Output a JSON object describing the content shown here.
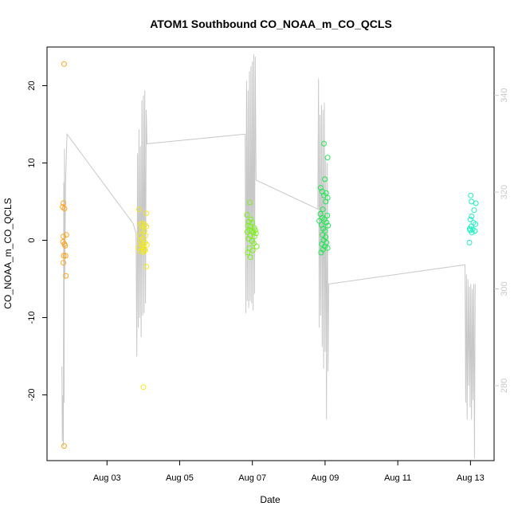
{
  "chart_data": {
    "type": "scatter",
    "title": "ATOM1 Southbound CO_NOAA_m_CO_QCLS",
    "xlabel": "Date",
    "ylabel": "CO_NOAA_m_CO_QCLS",
    "x_unit": "days since Aug 01 00:00",
    "xlim": [
      1.35,
      13.65
    ],
    "x_ticks": [
      3,
      5,
      7,
      9,
      11,
      13
    ],
    "x_tick_labels": [
      "Aug 03",
      "Aug 05",
      "Aug 07",
      "Aug 09",
      "Aug 11",
      "Aug 13"
    ],
    "ylim": [
      -28.5,
      25.0
    ],
    "y_ticks": [
      -20,
      -10,
      0,
      10,
      20
    ],
    "y_tick_labels": [
      "-20",
      "-10",
      "0",
      "10",
      "20"
    ],
    "y2lim": [
      264.5,
      350.0
    ],
    "y2_ticks": [
      280,
      300,
      320,
      340
    ],
    "y2_tick_labels": [
      "280",
      "300",
      "320",
      "340"
    ],
    "grid": false,
    "legend": "none",
    "colors": {
      "line": "#c8c8c8",
      "right_axis": "#c8c8c8",
      "axis": "#000000"
    },
    "series": [
      {
        "color": "#ffa31a",
        "points": [
          [
            1.82,
            22.8
          ],
          [
            1.8,
            4.8
          ],
          [
            1.78,
            4.3
          ],
          [
            1.83,
            4.1
          ],
          [
            1.8,
            0.5
          ],
          [
            1.79,
            -0.2
          ],
          [
            1.83,
            -0.5
          ],
          [
            1.85,
            -0.7
          ],
          [
            1.88,
            0.7
          ],
          [
            1.81,
            -2.0
          ],
          [
            1.86,
            -2.0
          ],
          [
            1.8,
            -2.9
          ],
          [
            1.87,
            -4.6
          ],
          [
            1.82,
            -26.6
          ]
        ]
      },
      {
        "color": "#f2e81c",
        "points": [
          [
            3.88,
            4.0
          ],
          [
            4.08,
            3.5
          ],
          [
            3.97,
            2.2
          ],
          [
            3.92,
            2.0
          ],
          [
            4.04,
            2.0
          ],
          [
            4.08,
            1.8
          ],
          [
            3.96,
            1.3
          ],
          [
            4.03,
            1.2
          ],
          [
            3.9,
            0.6
          ],
          [
            4.06,
            0.6
          ],
          [
            3.98,
            0.2
          ],
          [
            3.92,
            -0.1
          ],
          [
            4.05,
            -0.3
          ],
          [
            3.95,
            -0.4
          ],
          [
            4.0,
            -0.6
          ],
          [
            4.1,
            -0.6
          ],
          [
            3.87,
            -1.0
          ],
          [
            3.98,
            -1.0
          ],
          [
            4.03,
            -1.2
          ],
          [
            3.92,
            -1.4
          ],
          [
            4.05,
            -1.3
          ],
          [
            4.0,
            -1.5
          ],
          [
            4.08,
            -3.4
          ],
          [
            4.0,
            -19.0
          ]
        ]
      },
      {
        "color": "#7ef01e",
        "points": [
          [
            6.85,
            3.3
          ],
          [
            6.93,
            4.9
          ],
          [
            6.96,
            2.7
          ],
          [
            6.9,
            2.4
          ],
          [
            7.0,
            2.3
          ],
          [
            6.88,
            1.9
          ],
          [
            6.95,
            1.8
          ],
          [
            7.05,
            1.6
          ],
          [
            6.92,
            1.3
          ],
          [
            7.08,
            1.3
          ],
          [
            6.98,
            1.2
          ],
          [
            6.86,
            1.1
          ],
          [
            7.02,
            1.0
          ],
          [
            7.1,
            0.9
          ],
          [
            6.94,
            0.6
          ],
          [
            7.06,
            0.5
          ],
          [
            6.89,
            0.2
          ],
          [
            6.99,
            -0.1
          ],
          [
            7.04,
            -0.4
          ],
          [
            7.12,
            -0.8
          ],
          [
            6.92,
            -1.0
          ],
          [
            7.01,
            -1.3
          ],
          [
            6.87,
            -1.6
          ],
          [
            6.95,
            -2.2
          ]
        ]
      },
      {
        "color": "#1ee852",
        "points": [
          [
            8.97,
            12.5
          ],
          [
            9.07,
            10.7
          ],
          [
            8.99,
            7.9
          ],
          [
            8.88,
            6.8
          ],
          [
            8.92,
            6.3
          ],
          [
            9.03,
            6.1
          ],
          [
            8.97,
            5.8
          ],
          [
            9.07,
            5.5
          ],
          [
            9.02,
            5.0
          ],
          [
            8.94,
            4.0
          ],
          [
            8.87,
            3.4
          ],
          [
            9.06,
            3.2
          ],
          [
            8.92,
            2.9
          ],
          [
            8.98,
            2.7
          ],
          [
            8.84,
            2.5
          ],
          [
            9.04,
            2.3
          ],
          [
            8.9,
            2.0
          ],
          [
            9.08,
            1.9
          ],
          [
            8.95,
            1.5
          ],
          [
            9.0,
            1.2
          ],
          [
            8.93,
            0.7
          ],
          [
            9.02,
            0.4
          ],
          [
            8.96,
            0.0
          ],
          [
            9.04,
            -0.3
          ],
          [
            8.91,
            -0.5
          ],
          [
            8.99,
            -0.8
          ],
          [
            9.07,
            -1.0
          ],
          [
            8.94,
            -1.2
          ],
          [
            8.89,
            -1.6
          ]
        ]
      },
      {
        "color": "#1ef0c0",
        "points": [
          [
            13.01,
            5.8
          ],
          [
            13.03,
            5.0
          ],
          [
            13.15,
            4.8
          ],
          [
            13.1,
            3.9
          ],
          [
            13.03,
            3.1
          ],
          [
            13.0,
            2.7
          ],
          [
            13.08,
            2.3
          ],
          [
            13.14,
            2.1
          ],
          [
            13.02,
            1.8
          ],
          [
            12.98,
            1.5
          ],
          [
            13.06,
            1.4
          ],
          [
            12.99,
            1.3
          ],
          [
            13.12,
            1.2
          ],
          [
            13.04,
            1.0
          ],
          [
            12.97,
            -0.3
          ]
        ]
      }
    ],
    "line_series": {
      "axis": "right",
      "points": [
        [
          1.76,
          284.0
        ],
        [
          1.77,
          268.5
        ],
        [
          1.78,
          273.0
        ],
        [
          1.79,
          278.0
        ],
        [
          1.8,
          267.5
        ],
        [
          1.81,
          322.0
        ],
        [
          1.82,
          276.5
        ],
        [
          1.83,
          329.0
        ],
        [
          1.84,
          302.0
        ],
        [
          1.85,
          312.5
        ],
        [
          1.86,
          322.0
        ],
        [
          1.9,
          332.0
        ],
        [
          3.72,
          313.5
        ],
        [
          3.8,
          311.5
        ],
        [
          3.82,
          286.0
        ],
        [
          3.84,
          328.0
        ],
        [
          3.86,
          292.0
        ],
        [
          3.88,
          333.0
        ],
        [
          3.9,
          294.0
        ],
        [
          3.92,
          329.5
        ],
        [
          3.94,
          290.0
        ],
        [
          3.96,
          339.0
        ],
        [
          3.98,
          294.5
        ],
        [
          4.0,
          340.0
        ],
        [
          4.02,
          295.0
        ],
        [
          4.04,
          341.0
        ],
        [
          4.06,
          297.0
        ],
        [
          4.08,
          337.0
        ],
        [
          4.1,
          330.0
        ],
        [
          6.8,
          332.0
        ],
        [
          6.82,
          295.0
        ],
        [
          6.84,
          343.0
        ],
        [
          6.86,
          297.5
        ],
        [
          6.88,
          341.0
        ],
        [
          6.9,
          296.0
        ],
        [
          6.92,
          345.0
        ],
        [
          6.94,
          297.5
        ],
        [
          6.96,
          346.0
        ],
        [
          6.98,
          297.0
        ],
        [
          7.0,
          347.0
        ],
        [
          7.02,
          295.5
        ],
        [
          7.04,
          348.5
        ],
        [
          7.06,
          299.0
        ],
        [
          7.08,
          348.0
        ],
        [
          7.1,
          322.5
        ],
        [
          8.8,
          316.5
        ],
        [
          8.82,
          343.5
        ],
        [
          8.84,
          292.0
        ],
        [
          8.86,
          336.0
        ],
        [
          8.88,
          294.5
        ],
        [
          8.9,
          338.0
        ],
        [
          8.92,
          288.0
        ],
        [
          8.94,
          337.0
        ],
        [
          8.96,
          283.5
        ],
        [
          8.98,
          338.5
        ],
        [
          9.0,
          287.0
        ],
        [
          9.02,
          327.0
        ],
        [
          9.04,
          273.0
        ],
        [
          9.06,
          326.0
        ],
        [
          9.08,
          283.0
        ],
        [
          9.1,
          301.0
        ],
        [
          12.85,
          305.0
        ],
        [
          12.87,
          276.5
        ],
        [
          12.89,
          303.0
        ],
        [
          12.91,
          273.0
        ],
        [
          12.93,
          302.0
        ],
        [
          12.95,
          280.0
        ],
        [
          12.97,
          300.5
        ],
        [
          12.99,
          275.5
        ],
        [
          13.01,
          301.0
        ],
        [
          13.03,
          273.0
        ],
        [
          13.05,
          300.0
        ],
        [
          13.07,
          277.0
        ],
        [
          13.09,
          301.0
        ],
        [
          13.11,
          265.0
        ],
        [
          13.13,
          301.0
        ]
      ]
    }
  }
}
